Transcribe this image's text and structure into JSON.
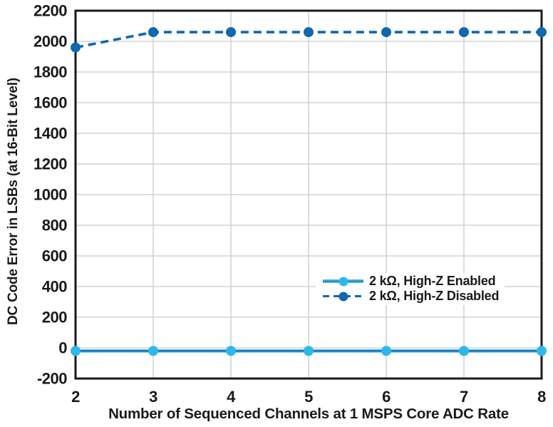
{
  "figure": {
    "background": "#ffffff",
    "text_color": "#1a1a1a",
    "border_color": "#1a1a1a",
    "grid_color": "#c9c9c9"
  },
  "chart_data": {
    "type": "line",
    "title": "",
    "xlabel": "Number of Sequenced Channels at 1 MSPS Core ADC Rate",
    "ylabel": "DC Code Error in LSBs (at 16-Bit Level)",
    "x": [
      2,
      3,
      4,
      5,
      6,
      7,
      8
    ],
    "xlim": [
      2,
      8
    ],
    "ylim": [
      -200,
      2200
    ],
    "xticks": [
      2,
      3,
      4,
      5,
      6,
      7,
      8
    ],
    "yticks": [
      2200,
      2000,
      1800,
      1600,
      1400,
      1200,
      1000,
      800,
      600,
      400,
      200,
      0,
      -200
    ],
    "grid": true,
    "legend_position": "inside right-center",
    "series": [
      {
        "name": "2 kΩ, High-Z Enabled",
        "values": [
          -20,
          -20,
          -20,
          -20,
          -20,
          -20,
          -20
        ],
        "line_style": "solid",
        "line_color": "#45b7e6",
        "line_core_color": "#1569ae",
        "marker_color": "#2cb9ea",
        "marker": "circle"
      },
      {
        "name": "2 kΩ, High-Z Disabled",
        "values": [
          1960,
          2060,
          2060,
          2060,
          2060,
          2060,
          2060
        ],
        "line_style": "dashed",
        "line_color": "#0f68b0",
        "line_core_color": "#0f68b0",
        "marker_color": "#0f68b0",
        "marker": "circle"
      }
    ]
  }
}
